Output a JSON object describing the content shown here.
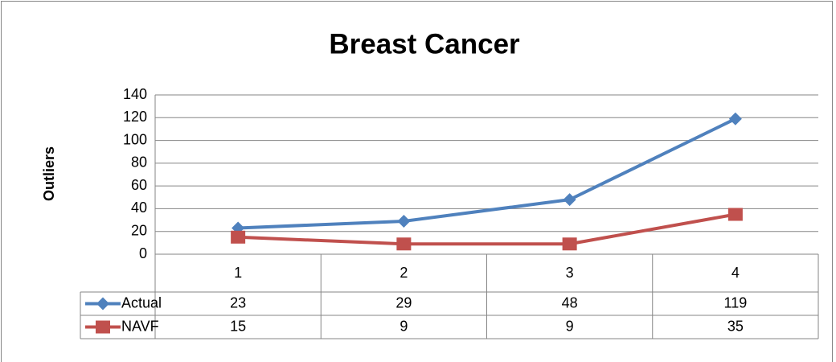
{
  "chart_data": {
    "type": "line",
    "title": "Breast Cancer",
    "y_label": "Outliers",
    "categories": [
      "1",
      "2",
      "3",
      "4"
    ],
    "series": [
      {
        "name": "Actual",
        "color": "#4f81bd",
        "marker": "diamond",
        "values": [
          23,
          29,
          48,
          119
        ]
      },
      {
        "name": "NAVF",
        "color": "#c0504d",
        "marker": "square",
        "values": [
          15,
          9,
          9,
          35
        ]
      }
    ],
    "ylim": [
      0,
      140
    ],
    "yticks": [
      0,
      20,
      40,
      60,
      80,
      100,
      120,
      140
    ],
    "grid": true,
    "legend": "data-table"
  }
}
